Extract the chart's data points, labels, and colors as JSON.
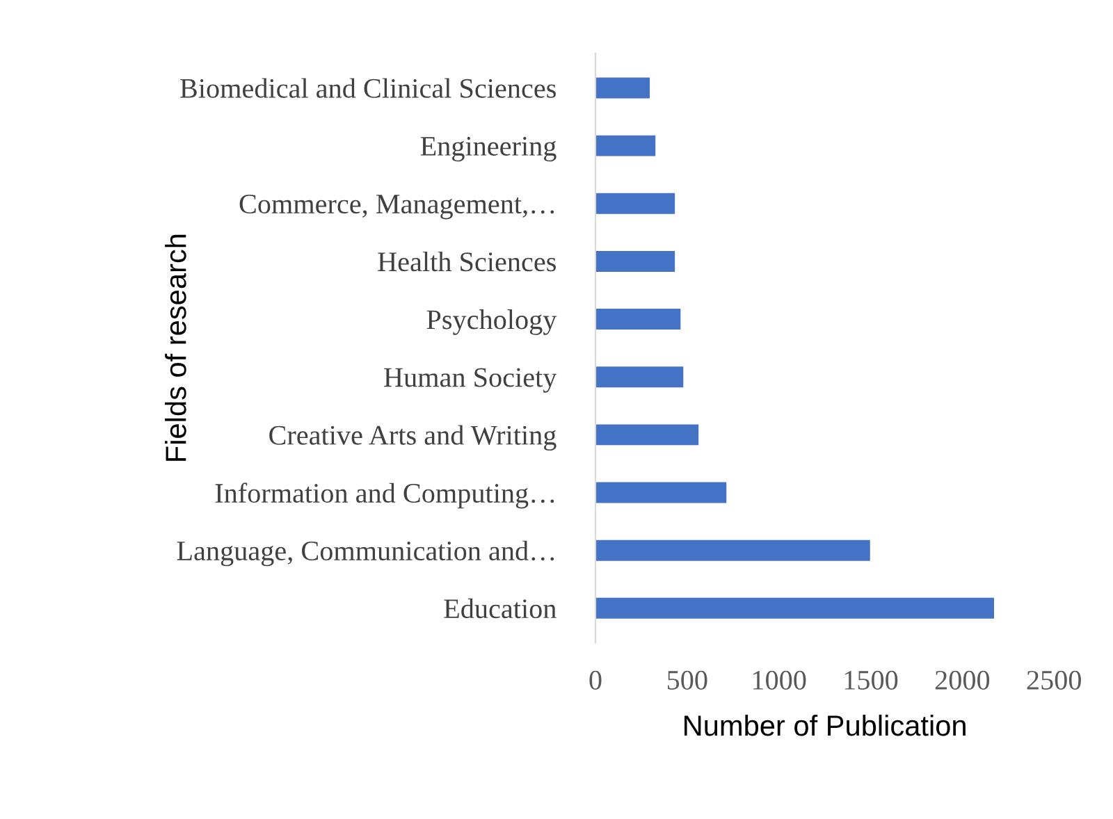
{
  "chart_data": {
    "type": "bar",
    "orientation": "horizontal",
    "xlabel": "Number of Publication",
    "ylabel": "Fields of research",
    "categories": [
      "Biomedical and Clinical Sciences",
      "Engineering",
      "Commerce, Management,…",
      "Health Sciences",
      "Psychology",
      "Human Society",
      "Creative Arts and Writing",
      "Information and Computing…",
      "Language, Communication and…",
      "Education"
    ],
    "values": [
      296,
      327,
      433,
      433,
      464,
      479,
      562,
      714,
      1497,
      2173
    ],
    "color": "#4472c4",
    "xlim": [
      0,
      2500
    ],
    "xticks": [
      0,
      500,
      1000,
      1500,
      2000,
      2500
    ],
    "grid": false,
    "legend": false
  }
}
